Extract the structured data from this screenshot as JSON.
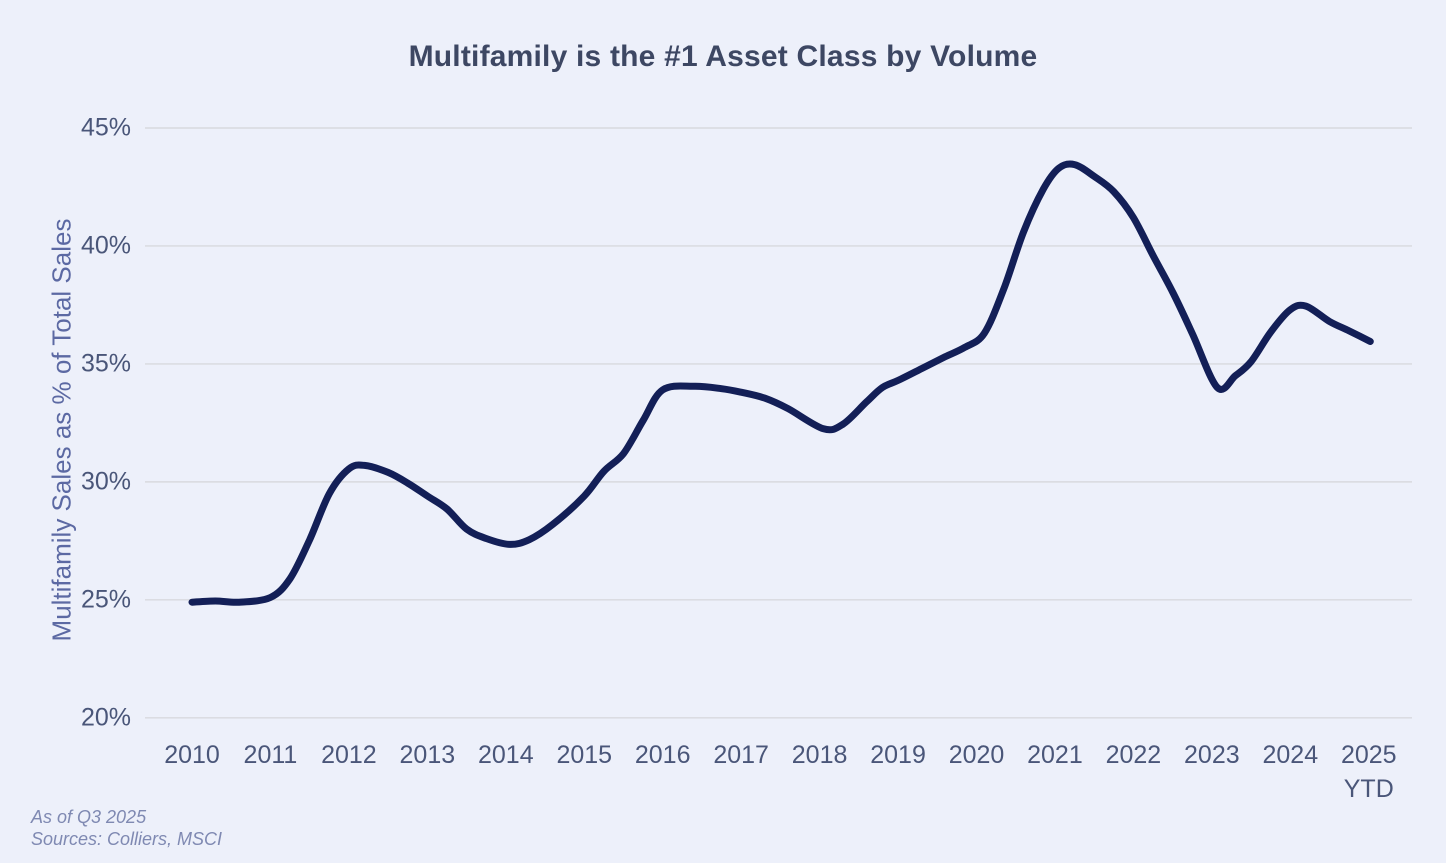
{
  "chart": {
    "title": "Multifamily is the #1 Asset Class by Volume",
    "ylabel": "Multifamily Sales as % of Total Sales"
  },
  "footer": {
    "as_of": "As of Q3 2025",
    "sources": "Sources: Colliers, MSCI"
  },
  "colors": {
    "bg": "#edf0fa",
    "line": "#131f57",
    "grid": "#d8d9de",
    "title": "#3d4763",
    "tick": "#4a5679",
    "axistitle": "#5c69a3",
    "footer": "#7f89b2"
  },
  "chart_data": {
    "type": "line",
    "title": "Multifamily is the #1 Asset Class by Volume",
    "xlabel": "",
    "ylabel": "Multifamily Sales as % of Total Sales",
    "legend": "none",
    "grid": "horizontal",
    "ylim": [
      20,
      45
    ],
    "yticks": [
      20,
      25,
      30,
      35,
      40,
      45
    ],
    "ytick_labels": [
      "20%",
      "25%",
      "30%",
      "35%",
      "40%",
      "45%"
    ],
    "categories": [
      "2010",
      "2011",
      "2012",
      "2013",
      "2014",
      "2015",
      "2016",
      "2017",
      "2018",
      "2019",
      "2020",
      "2021",
      "2022",
      "2023",
      "2024",
      "2025 YTD"
    ],
    "values": [
      24.9,
      25.1,
      30.6,
      29.4,
      27.4,
      29.4,
      33.9,
      33.8,
      32.3,
      34.3,
      36.1,
      43.3,
      41.2,
      34.1,
      37.3,
      36.0
    ],
    "curve_points": [
      [
        2010.0,
        24.9
      ],
      [
        2010.3,
        24.95
      ],
      [
        2010.6,
        24.9
      ],
      [
        2011.0,
        25.1
      ],
      [
        2011.25,
        25.9
      ],
      [
        2011.5,
        27.55
      ],
      [
        2011.75,
        29.5
      ],
      [
        2012.0,
        30.55
      ],
      [
        2012.2,
        30.7
      ],
      [
        2012.5,
        30.4
      ],
      [
        2012.75,
        29.95
      ],
      [
        2013.0,
        29.4
      ],
      [
        2013.25,
        28.85
      ],
      [
        2013.5,
        28.0
      ],
      [
        2013.75,
        27.6
      ],
      [
        2014.05,
        27.35
      ],
      [
        2014.3,
        27.55
      ],
      [
        2014.6,
        28.2
      ],
      [
        2015.0,
        29.4
      ],
      [
        2015.25,
        30.45
      ],
      [
        2015.5,
        31.2
      ],
      [
        2015.75,
        32.6
      ],
      [
        2016.0,
        33.9
      ],
      [
        2016.4,
        34.05
      ],
      [
        2016.75,
        33.95
      ],
      [
        2017.0,
        33.8
      ],
      [
        2017.3,
        33.55
      ],
      [
        2017.6,
        33.1
      ],
      [
        2018.05,
        32.25
      ],
      [
        2018.3,
        32.45
      ],
      [
        2018.6,
        33.4
      ],
      [
        2018.8,
        34.0
      ],
      [
        2019.0,
        34.3
      ],
      [
        2019.3,
        34.8
      ],
      [
        2019.6,
        35.3
      ],
      [
        2019.85,
        35.7
      ],
      [
        2020.1,
        36.3
      ],
      [
        2020.35,
        38.2
      ],
      [
        2020.6,
        40.6
      ],
      [
        2020.85,
        42.4
      ],
      [
        2021.05,
        43.3
      ],
      [
        2021.25,
        43.45
      ],
      [
        2021.5,
        42.95
      ],
      [
        2021.75,
        42.3
      ],
      [
        2022.0,
        41.2
      ],
      [
        2022.25,
        39.6
      ],
      [
        2022.5,
        38.05
      ],
      [
        2022.75,
        36.3
      ],
      [
        2023.07,
        34.0
      ],
      [
        2023.3,
        34.5
      ],
      [
        2023.5,
        35.1
      ],
      [
        2023.75,
        36.35
      ],
      [
        2024.0,
        37.3
      ],
      [
        2024.2,
        37.45
      ],
      [
        2024.5,
        36.8
      ],
      [
        2024.75,
        36.4
      ],
      [
        2025.02,
        35.95
      ]
    ]
  }
}
